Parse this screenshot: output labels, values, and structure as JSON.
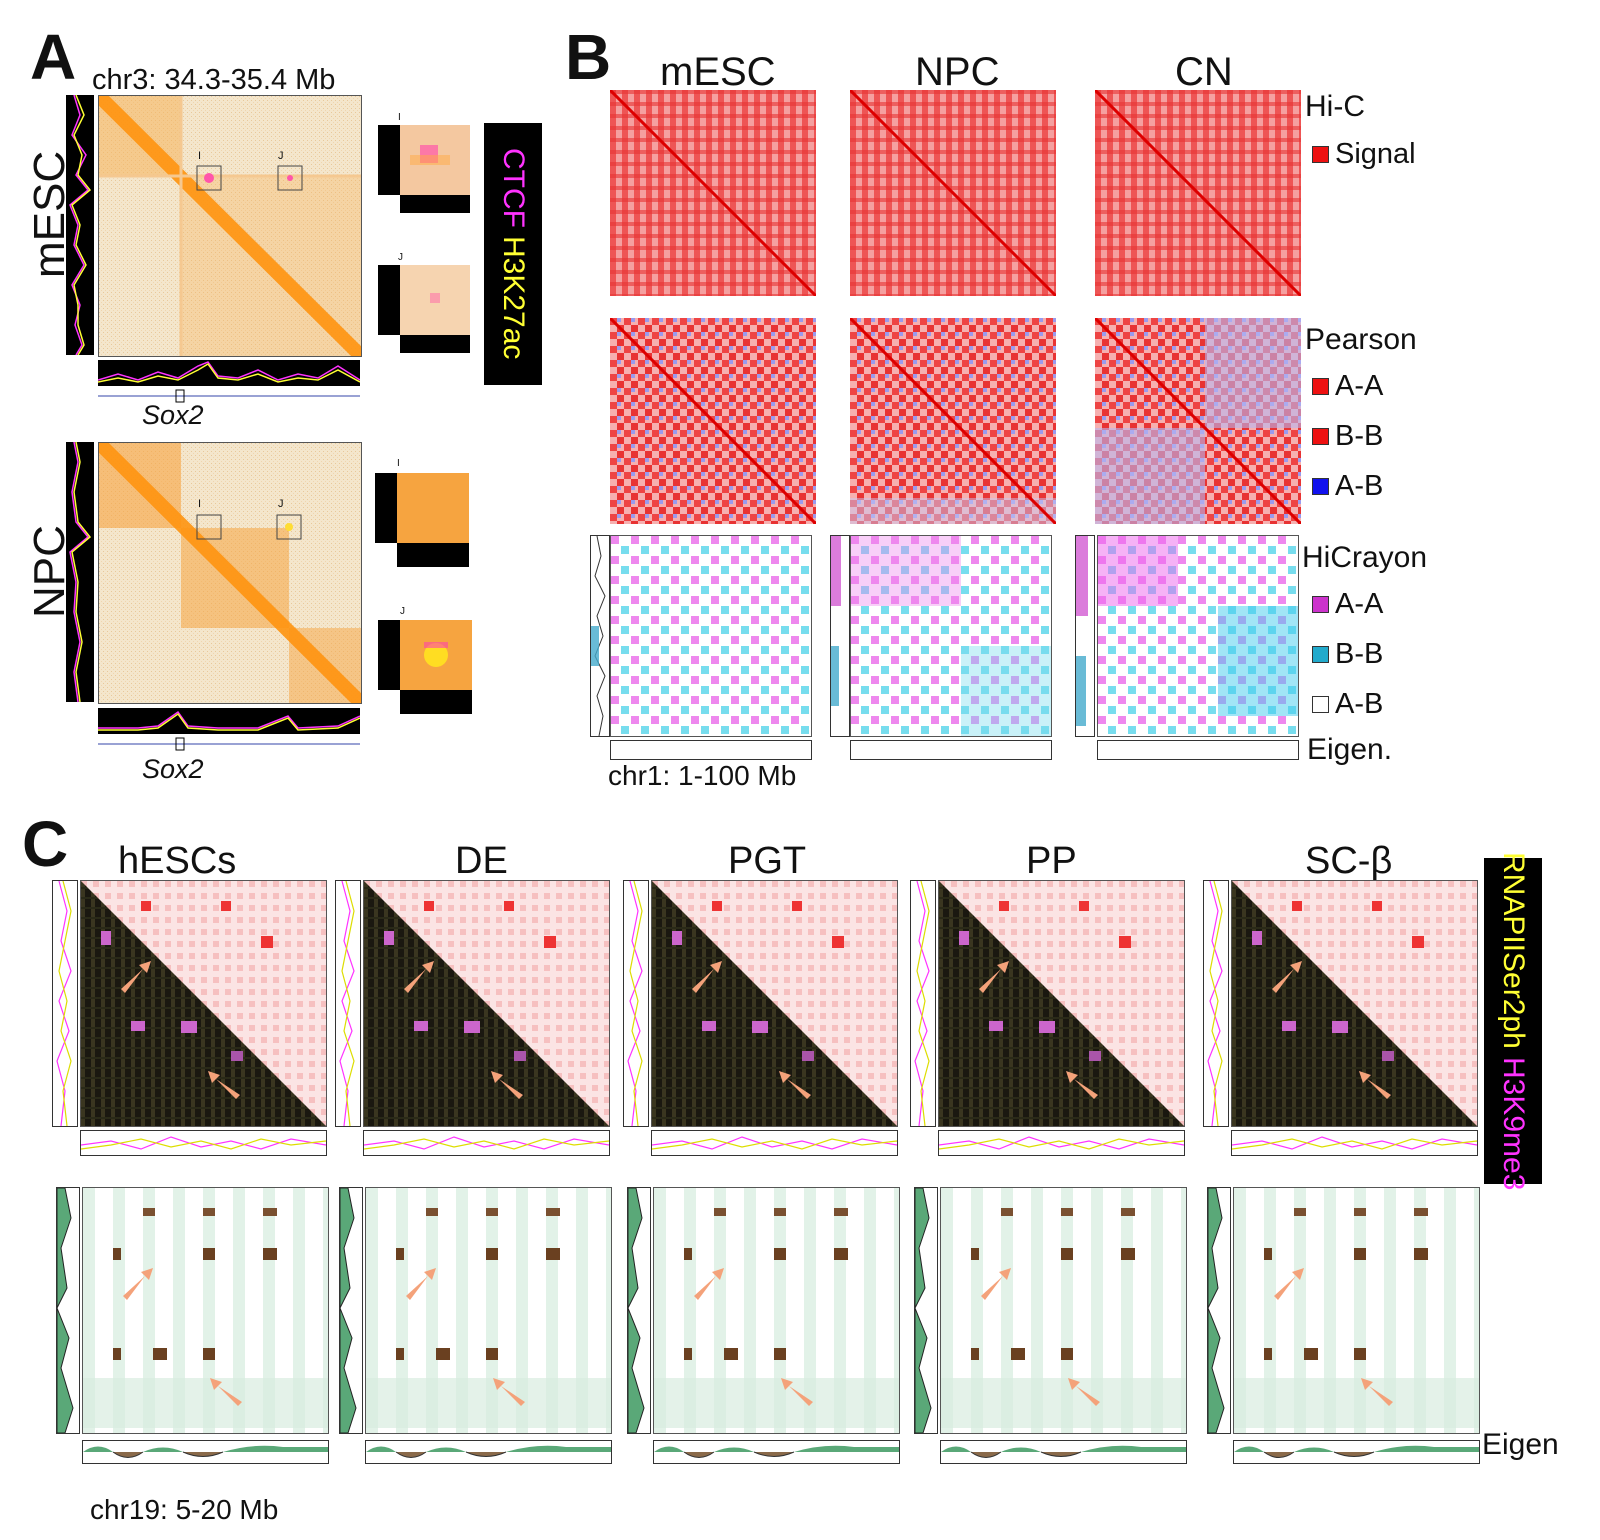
{
  "panelA": {
    "letter": "A",
    "region": "chr3: 34.3-35.4 Mb",
    "rows": [
      "mESC",
      "NPC"
    ],
    "gene": "Sox2",
    "box_labels": [
      "I",
      "J"
    ],
    "legend": {
      "ctcf": "CTCF",
      "h3k27ac": "H3K27ac",
      "ctcf_color": "#ff33ff",
      "h3k27ac_color": "#ffff33"
    }
  },
  "panelB": {
    "letter": "B",
    "columns": [
      "mESC",
      "NPC",
      "CN"
    ],
    "region": "chr1: 1-100 Mb",
    "legend": {
      "hic_title": "Hi-C",
      "hic_items": [
        "Signal"
      ],
      "pearson_title": "Pearson",
      "pearson_items": [
        "A-A",
        "B-B",
        "A-B"
      ],
      "hicrayon_title": "HiCrayon",
      "hicrayon_items": [
        "A-A",
        "B-B",
        "A-B"
      ],
      "eigen": "Eigen.",
      "colors": {
        "signal": "#ee1111",
        "pearson_aa": "#ee1111",
        "pearson_bb": "#ee1111",
        "pearson_ab": "#1111ee",
        "crayon_aa": "#cc33cc",
        "crayon_bb": "#22aacc",
        "crayon_ab": "#ffffff"
      }
    }
  },
  "panelC": {
    "letter": "C",
    "columns": [
      "hESCs",
      "DE",
      "PGT",
      "PP",
      "SC-β"
    ],
    "region": "chr19: 5-20 Mb",
    "eigen": "Eigen",
    "legend": {
      "rnap": "RNAPIISer2ph",
      "h3k9": "H3K9me3",
      "rnap_color": "#ffff33",
      "h3k9_color": "#ff33ff"
    }
  }
}
